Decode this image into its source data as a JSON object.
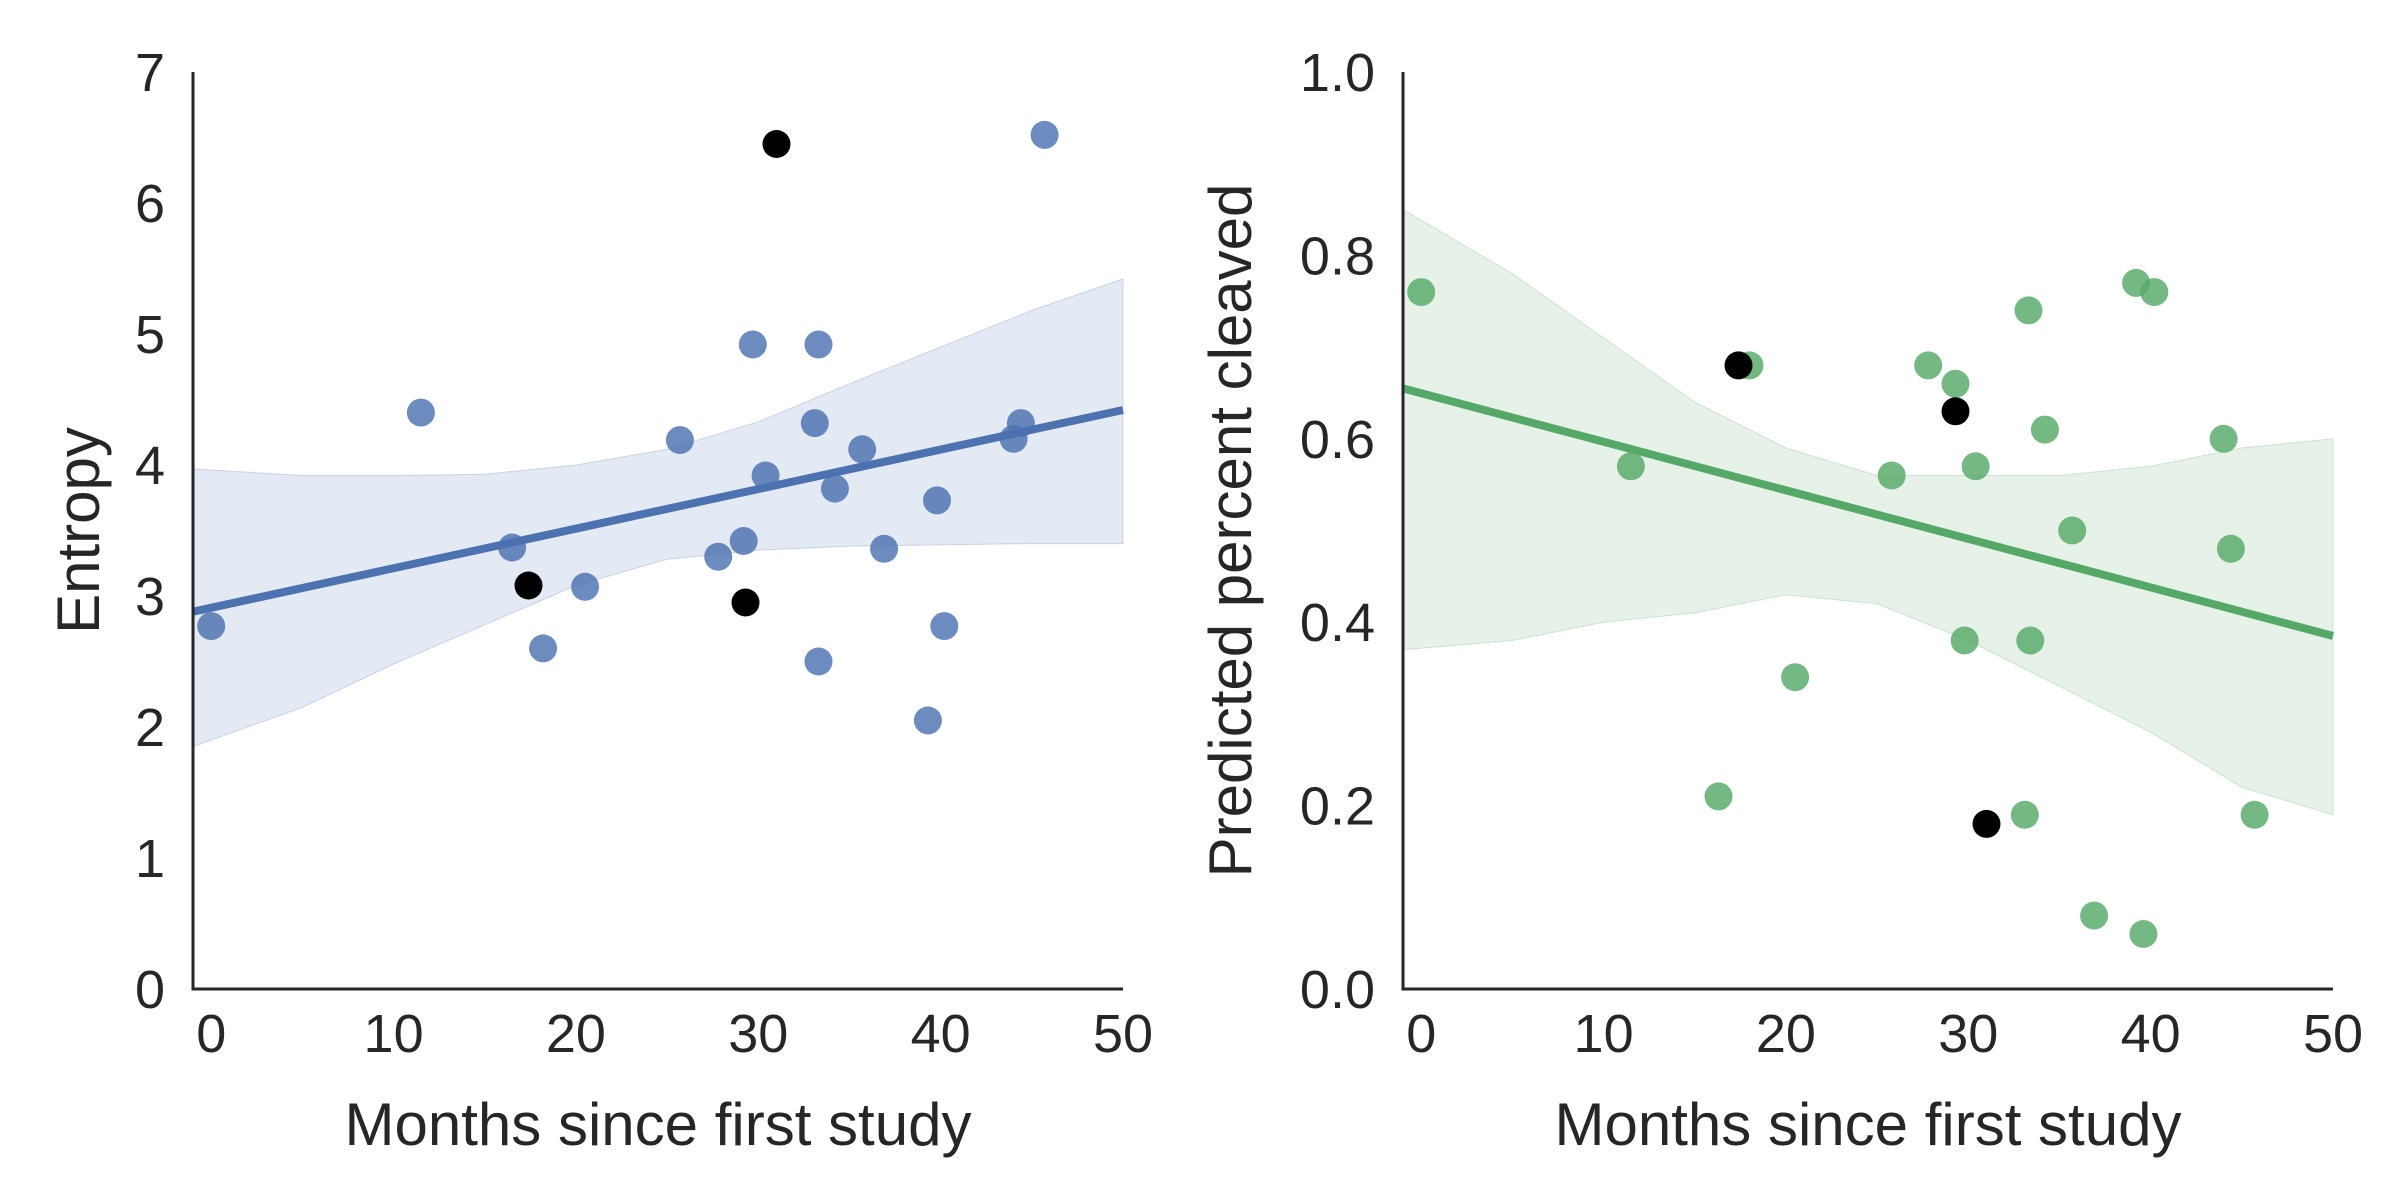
{
  "chart_data": [
    {
      "type": "scatter",
      "title": "",
      "xlabel": "Months since first study",
      "ylabel": "Entropy",
      "xlim": [
        -1,
        50
      ],
      "ylim": [
        0,
        7
      ],
      "xticks": [
        "0",
        "10",
        "20",
        "30",
        "40",
        "50"
      ],
      "yticks": [
        "0",
        "1",
        "2",
        "3",
        "4",
        "5",
        "6",
        "7"
      ],
      "grid": false,
      "color": "#4C72B0",
      "series": [
        {
          "x": [
            0,
            11.5,
            16.5,
            18.2,
            20.5,
            25.7,
            27.8,
            29.2,
            29.7,
            30.4,
            33.1,
            33.3,
            33.3,
            34.2,
            35.7,
            36.9,
            39.3,
            39.8,
            40.2,
            44.0,
            44.4,
            45.7
          ],
          "y": [
            2.77,
            4.4,
            3.37,
            2.6,
            3.07,
            4.19,
            3.3,
            3.42,
            4.92,
            3.92,
            4.32,
            2.5,
            4.92,
            3.82,
            4.12,
            3.36,
            2.05,
            3.73,
            2.77,
            4.2,
            4.32,
            6.52
          ],
          "color": "#4C72B0"
        },
        {
          "x": [
            17.4,
            29.3,
            31.0
          ],
          "y": [
            3.08,
            2.95,
            6.45
          ],
          "color": "#000000"
        }
      ],
      "regression": {
        "x": [
          -1,
          50
        ],
        "y": [
          2.88,
          4.42
        ],
        "color": "#4C72B0"
      },
      "confidence_band": {
        "x": [
          -1,
          5,
          10,
          15,
          20,
          25,
          30,
          35,
          40,
          45,
          50
        ],
        "lower": [
          1.85,
          2.15,
          2.48,
          2.78,
          3.08,
          3.28,
          3.35,
          3.38,
          3.39,
          3.4,
          3.4
        ],
        "upper": [
          3.97,
          3.92,
          3.92,
          3.93,
          4.0,
          4.12,
          4.33,
          4.62,
          4.9,
          5.18,
          5.42
        ]
      }
    },
    {
      "type": "scatter",
      "title": "",
      "xlabel": "Months since first study",
      "ylabel": "Predicted percent cleaved",
      "xlim": [
        -1,
        50
      ],
      "ylim": [
        0,
        1
      ],
      "xticks": [
        "0",
        "10",
        "20",
        "30",
        "40",
        "50"
      ],
      "yticks": [
        "0.0",
        "0.2",
        "0.4",
        "0.6",
        "0.8",
        "1.0"
      ],
      "grid": false,
      "color": "#55A868",
      "series": [
        {
          "x": [
            0,
            11.5,
            16.3,
            18.0,
            20.5,
            25.8,
            27.8,
            29.3,
            29.8,
            30.4,
            33.1,
            33.3,
            33.4,
            34.2,
            35.7,
            36.9,
            39.2,
            39.6,
            40.2,
            44.0,
            44.4,
            45.7
          ],
          "y": [
            0.76,
            0.57,
            0.21,
            0.68,
            0.34,
            0.56,
            0.68,
            0.66,
            0.38,
            0.57,
            0.19,
            0.74,
            0.38,
            0.61,
            0.5,
            0.08,
            0.77,
            0.06,
            0.76,
            0.6,
            0.48,
            0.19
          ],
          "color": "#55A868"
        },
        {
          "x": [
            17.4,
            29.3,
            31.0
          ],
          "y": [
            0.68,
            0.63,
            0.18
          ],
          "color": "#000000"
        }
      ],
      "regression": {
        "x": [
          -1,
          50
        ],
        "y": [
          0.655,
          0.385
        ],
        "color": "#55A868"
      },
      "confidence_band": {
        "x": [
          -1,
          5,
          10,
          15,
          20,
          25,
          30,
          35,
          40,
          45,
          50
        ],
        "lower": [
          0.37,
          0.38,
          0.4,
          0.41,
          0.43,
          0.42,
          0.38,
          0.33,
          0.28,
          0.22,
          0.19
        ],
        "upper": [
          0.85,
          0.78,
          0.71,
          0.64,
          0.59,
          0.56,
          0.56,
          0.56,
          0.57,
          0.59,
          0.6
        ]
      }
    }
  ]
}
